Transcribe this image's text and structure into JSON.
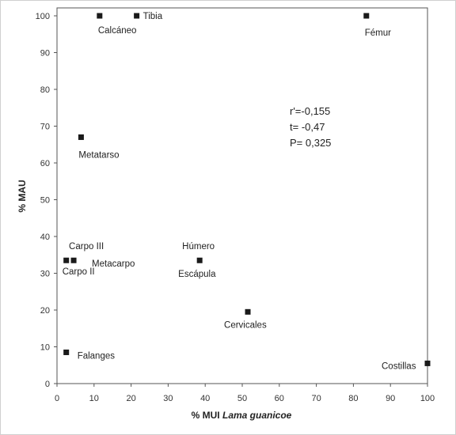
{
  "chart_data": {
    "type": "scatter",
    "title": "",
    "xlabel_prefix": "% MUI ",
    "xlabel_italic": "Lama guanicoe",
    "ylabel": "% MAU",
    "xlim": [
      0,
      100
    ],
    "ylim": [
      0,
      100
    ],
    "x_ticks": [
      0,
      10,
      20,
      30,
      40,
      50,
      60,
      70,
      80,
      90,
      100
    ],
    "y_ticks": [
      0,
      10,
      20,
      30,
      40,
      50,
      60,
      70,
      80,
      90,
      100
    ],
    "grid": false,
    "legend": "none",
    "marker_color": "#1a1a1a",
    "points": [
      {
        "label": "Calcáneo",
        "x": 11.5,
        "y": 100
      },
      {
        "label": "Tibia",
        "x": 21.5,
        "y": 100
      },
      {
        "label": "Fémur",
        "x": 83.5,
        "y": 100
      },
      {
        "label": "Metatarso",
        "x": 6.5,
        "y": 67
      },
      {
        "label": "Carpo III",
        "x": 4.5,
        "y": 33.5
      },
      {
        "label": "Carpo II",
        "x": 2.5,
        "y": 33.5
      },
      {
        "label": "Metacarpo",
        "x": 4.5,
        "y": 33.5
      },
      {
        "label": "Húmero",
        "x": 38.5,
        "y": 33.5
      },
      {
        "label": "Escápula",
        "x": 38.5,
        "y": 33.5
      },
      {
        "label": "Cervicales",
        "x": 51.5,
        "y": 19.5
      },
      {
        "label": "Falanges",
        "x": 2.5,
        "y": 8.5
      },
      {
        "label": "Costillas",
        "x": 100,
        "y": 5.5
      }
    ],
    "marker_points": [
      {
        "x": 11.5,
        "y": 100
      },
      {
        "x": 21.5,
        "y": 100
      },
      {
        "x": 83.5,
        "y": 100
      },
      {
        "x": 6.5,
        "y": 67
      },
      {
        "x": 2.5,
        "y": 33.5
      },
      {
        "x": 4.5,
        "y": 33.5
      },
      {
        "x": 38.5,
        "y": 33.5
      },
      {
        "x": 51.5,
        "y": 19.5
      },
      {
        "x": 2.5,
        "y": 8.5
      },
      {
        "x": 100,
        "y": 5.5
      }
    ],
    "annotations": [
      "r'=-0,155",
      "t= -0,47",
      "P= 0,325"
    ]
  }
}
